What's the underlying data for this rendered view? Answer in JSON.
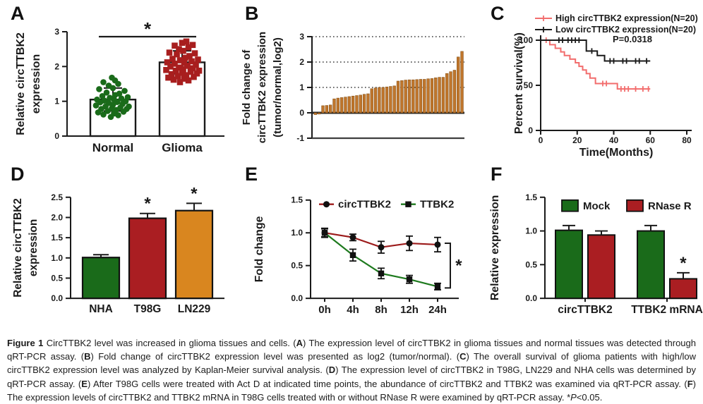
{
  "figure": {
    "background": "#ffffff",
    "caption": {
      "segments": [
        {
          "t": "Figure 1 ",
          "b": true
        },
        {
          "t": "CircTTBK2 level was increased in glioma tissues and cells. ("
        },
        {
          "t": "A",
          "b": true
        },
        {
          "t": ") The expression level of circTTBK2 in glioma tissues and normal tissues was detected through qRT-PCR assay. ("
        },
        {
          "t": "B",
          "b": true
        },
        {
          "t": ") Fold change of circTTBK2 expression level was presented as log2 (tumor/normal). ("
        },
        {
          "t": "C",
          "b": true
        },
        {
          "t": ") The overall survival of glioma patients with high/low circTTBK2 expression level was analyzed by Kaplan-Meier survival analysis. ("
        },
        {
          "t": "D",
          "b": true
        },
        {
          "t": ") The expression level of circTTBK2 in T98G, LN229 and NHA cells was determined by qRT-PCR assay. ("
        },
        {
          "t": "E",
          "b": true
        },
        {
          "t": ") After T98G cells were treated with Act D at indicated time points, the abundance of circTTBK2 and TTBK2 was examined via qRT-PCR assay. ("
        },
        {
          "t": "F",
          "b": true
        },
        {
          "t": ") The expression levels of circTTBK2 and TTBK2 mRNA in T98G cells treated with or without RNase R were examined by qRT-PCR assay. *"
        },
        {
          "t": "P",
          "i": true
        },
        {
          "t": "<0.05."
        }
      ]
    }
  },
  "panels": {
    "A": {
      "label": "A"
    },
    "B": {
      "label": "B"
    },
    "C": {
      "label": "C"
    },
    "D": {
      "label": "D"
    },
    "E": {
      "label": "E"
    },
    "F": {
      "label": "F"
    }
  },
  "chart_data": [
    {
      "panel": "A",
      "type": "scatter",
      "ylabel_lines": [
        "Relative circTTBK2",
        "expression"
      ],
      "ylim": [
        0,
        3
      ],
      "yticks": [
        0,
        1,
        2,
        3
      ],
      "categories": [
        "Normal",
        "Glioma"
      ],
      "bar_means": [
        1.05,
        2.12
      ],
      "bar_err": [
        0.33,
        0.33
      ],
      "significance": "*",
      "groups": [
        {
          "name": "Normal",
          "marker": "circle",
          "color": "#1a6b1a",
          "points": [
            [
              -0.1,
              0.55
            ],
            [
              0.25,
              0.6
            ],
            [
              -0.45,
              0.62
            ],
            [
              0.05,
              0.65
            ],
            [
              -0.7,
              0.68
            ],
            [
              0.5,
              0.7
            ],
            [
              -0.25,
              0.72
            ],
            [
              0.15,
              0.75
            ],
            [
              -0.55,
              0.78
            ],
            [
              0.65,
              0.78
            ],
            [
              -0.05,
              0.8
            ],
            [
              0.35,
              0.82
            ],
            [
              -0.35,
              0.85
            ],
            [
              0.75,
              0.85
            ],
            [
              -0.8,
              0.88
            ],
            [
              0.0,
              0.9
            ],
            [
              0.45,
              0.92
            ],
            [
              -0.2,
              0.95
            ],
            [
              -0.6,
              0.97
            ],
            [
              0.2,
              0.98
            ],
            [
              0.6,
              1.0
            ],
            [
              -0.4,
              1.02
            ],
            [
              0.05,
              1.05
            ],
            [
              -0.75,
              1.05
            ],
            [
              0.4,
              1.08
            ],
            [
              -0.15,
              1.1
            ],
            [
              0.7,
              1.12
            ],
            [
              -0.5,
              1.15
            ],
            [
              0.1,
              1.18
            ],
            [
              0.3,
              1.22
            ],
            [
              -0.3,
              1.25
            ],
            [
              0.55,
              1.3
            ],
            [
              -0.65,
              1.35
            ],
            [
              0.0,
              1.38
            ],
            [
              -0.2,
              1.45
            ],
            [
              0.25,
              1.5
            ],
            [
              -0.45,
              1.55
            ],
            [
              0.1,
              1.6
            ],
            [
              -0.05,
              1.68
            ]
          ]
        },
        {
          "name": "Glioma",
          "marker": "square",
          "color": "#a81e1e",
          "points": [
            [
              -0.1,
              1.55
            ],
            [
              0.3,
              1.6
            ],
            [
              -0.4,
              1.62
            ],
            [
              0.1,
              1.65
            ],
            [
              -0.65,
              1.68
            ],
            [
              0.55,
              1.7
            ],
            [
              -0.2,
              1.72
            ],
            [
              0.2,
              1.75
            ],
            [
              -0.5,
              1.78
            ],
            [
              0.7,
              1.8
            ],
            [
              0.0,
              1.82
            ],
            [
              0.4,
              1.85
            ],
            [
              -0.3,
              1.88
            ],
            [
              0.8,
              1.88
            ],
            [
              -0.75,
              1.9
            ],
            [
              0.05,
              1.92
            ],
            [
              0.5,
              1.95
            ],
            [
              -0.15,
              1.97
            ],
            [
              -0.55,
              2.0
            ],
            [
              0.25,
              2.02
            ],
            [
              0.65,
              2.05
            ],
            [
              -0.35,
              2.08
            ],
            [
              0.1,
              2.1
            ],
            [
              -0.7,
              2.12
            ],
            [
              0.45,
              2.15
            ],
            [
              -0.1,
              2.18
            ],
            [
              0.75,
              2.2
            ],
            [
              -0.45,
              2.22
            ],
            [
              0.15,
              2.25
            ],
            [
              0.35,
              2.3
            ],
            [
              -0.25,
              2.35
            ],
            [
              0.6,
              2.38
            ],
            [
              -0.6,
              2.4
            ],
            [
              0.05,
              2.45
            ],
            [
              -0.15,
              2.5
            ],
            [
              0.3,
              2.55
            ],
            [
              -0.35,
              2.6
            ],
            [
              0.5,
              2.62
            ],
            [
              0.0,
              2.68
            ],
            [
              0.2,
              2.72
            ]
          ]
        }
      ]
    },
    {
      "panel": "B",
      "type": "bar",
      "ylabel_lines": [
        "Fold change of",
        "circTTBK2 expression",
        "(tumor/normal,log2)"
      ],
      "ylim": [
        -1,
        3
      ],
      "yticks": [
        -1,
        0,
        1,
        2,
        3
      ],
      "grid_dotted_at": [
        1,
        2,
        3
      ],
      "bar_color": "#c0762c",
      "bar_edge": "#8a5418",
      "values": [
        -0.07,
        -0.05,
        0.28,
        0.29,
        0.31,
        0.55,
        0.58,
        0.6,
        0.62,
        0.64,
        0.66,
        0.68,
        0.7,
        0.73,
        0.75,
        0.95,
        0.98,
        1.0,
        1.0,
        1.02,
        1.04,
        1.06,
        1.25,
        1.27,
        1.29,
        1.3,
        1.3,
        1.31,
        1.32,
        1.32,
        1.34,
        1.35,
        1.38,
        1.4,
        1.4,
        1.55,
        1.62,
        1.68,
        2.2,
        2.42
      ]
    },
    {
      "panel": "C",
      "type": "line",
      "subtype": "kaplan-meier",
      "ylabel": "Percent survival(%)",
      "xlabel": "Time(Months)",
      "ylim": [
        0,
        100
      ],
      "yticks": [
        0,
        50,
        100
      ],
      "xlim": [
        0,
        80
      ],
      "xticks": [
        0,
        20,
        40,
        60,
        80
      ],
      "p_value": "P=0.0318",
      "series": [
        {
          "name": "High circTTBK2 expression(N=20)",
          "color": "#f26d6d",
          "end_x": 60,
          "steps": [
            [
              0,
              100
            ],
            [
              5,
              95
            ],
            [
              8,
              91
            ],
            [
              11,
              87
            ],
            [
              13,
              83
            ],
            [
              16,
              79
            ],
            [
              19,
              75
            ],
            [
              21,
              71
            ],
            [
              23,
              67
            ],
            [
              25,
              63
            ],
            [
              27,
              58
            ],
            [
              30,
              52
            ],
            [
              42,
              46
            ]
          ],
          "censors": [
            [
              3,
              100
            ],
            [
              34,
              52
            ],
            [
              36,
              52
            ],
            [
              44,
              46
            ],
            [
              46,
              46
            ],
            [
              48,
              46
            ],
            [
              52,
              46
            ],
            [
              56,
              46
            ],
            [
              59,
              46
            ]
          ]
        },
        {
          "name": "Low circTTBK2 expression(N=20)",
          "color": "#1a1a1a",
          "end_x": 60,
          "steps": [
            [
              0,
              100
            ],
            [
              25,
              88
            ],
            [
              31,
              83
            ],
            [
              35,
              77
            ]
          ],
          "censors": [
            [
              10,
              100
            ],
            [
              12,
              100
            ],
            [
              15,
              100
            ],
            [
              17,
              100
            ],
            [
              19,
              100
            ],
            [
              21,
              100
            ],
            [
              28,
              88
            ],
            [
              38,
              77
            ],
            [
              40,
              77
            ],
            [
              45,
              77
            ],
            [
              47,
              77
            ],
            [
              52,
              77
            ],
            [
              54,
              77
            ],
            [
              58,
              77
            ]
          ]
        }
      ]
    },
    {
      "panel": "D",
      "type": "bar",
      "ylabel_lines": [
        "Relative circTTBK2",
        "expression"
      ],
      "ylim": [
        0,
        2.5
      ],
      "yticks": [
        "0.0",
        "0.5",
        "1.0",
        "1.5",
        "2.0",
        "2.5"
      ],
      "categories": [
        "NHA",
        "T98G",
        "LN229"
      ],
      "values": [
        1.01,
        1.98,
        2.17
      ],
      "errors": [
        0.07,
        0.12,
        0.18
      ],
      "colors": [
        "#1a6b1a",
        "#aa1e22",
        "#d9861f"
      ],
      "sig": [
        "",
        "*",
        "*"
      ]
    },
    {
      "panel": "E",
      "type": "line",
      "ylabel": "Fold change",
      "ylim": [
        0,
        1.5
      ],
      "yticks": [
        "0.0",
        "0.5",
        "1.0",
        "1.5"
      ],
      "categories": [
        "0h",
        "4h",
        "8h",
        "12h",
        "24h"
      ],
      "significance": "*",
      "series": [
        {
          "name": "circTTBK2",
          "line_color": "#9c1b1b",
          "marker": "circle",
          "marker_color": "#111111",
          "values": [
            1.0,
            0.93,
            0.78,
            0.84,
            0.82
          ],
          "errors": [
            0.07,
            0.05,
            0.09,
            0.11,
            0.11
          ]
        },
        {
          "name": "TTBK2",
          "line_color": "#1e7a1e",
          "marker": "square",
          "marker_color": "#111111",
          "values": [
            1.0,
            0.66,
            0.38,
            0.29,
            0.18
          ],
          "errors": [
            0.06,
            0.09,
            0.08,
            0.06,
            0.05
          ]
        }
      ]
    },
    {
      "panel": "F",
      "type": "bar",
      "ylabel": "Relative expression",
      "ylim": [
        0,
        1.5
      ],
      "yticks": [
        "0.0",
        "0.5",
        "1.0",
        "1.5"
      ],
      "categories": [
        "circTTBK2",
        "TTBK2 mRNA"
      ],
      "series": [
        {
          "name": "Mock",
          "color": "#1a6b1a",
          "values": [
            1.01,
            1.0
          ],
          "errors": [
            0.07,
            0.08
          ]
        },
        {
          "name": "RNase R",
          "color": "#aa1e22",
          "values": [
            0.94,
            0.29
          ],
          "errors": [
            0.06,
            0.09
          ]
        }
      ],
      "sig": [
        [
          "",
          ""
        ],
        [
          "",
          "*"
        ]
      ]
    }
  ]
}
